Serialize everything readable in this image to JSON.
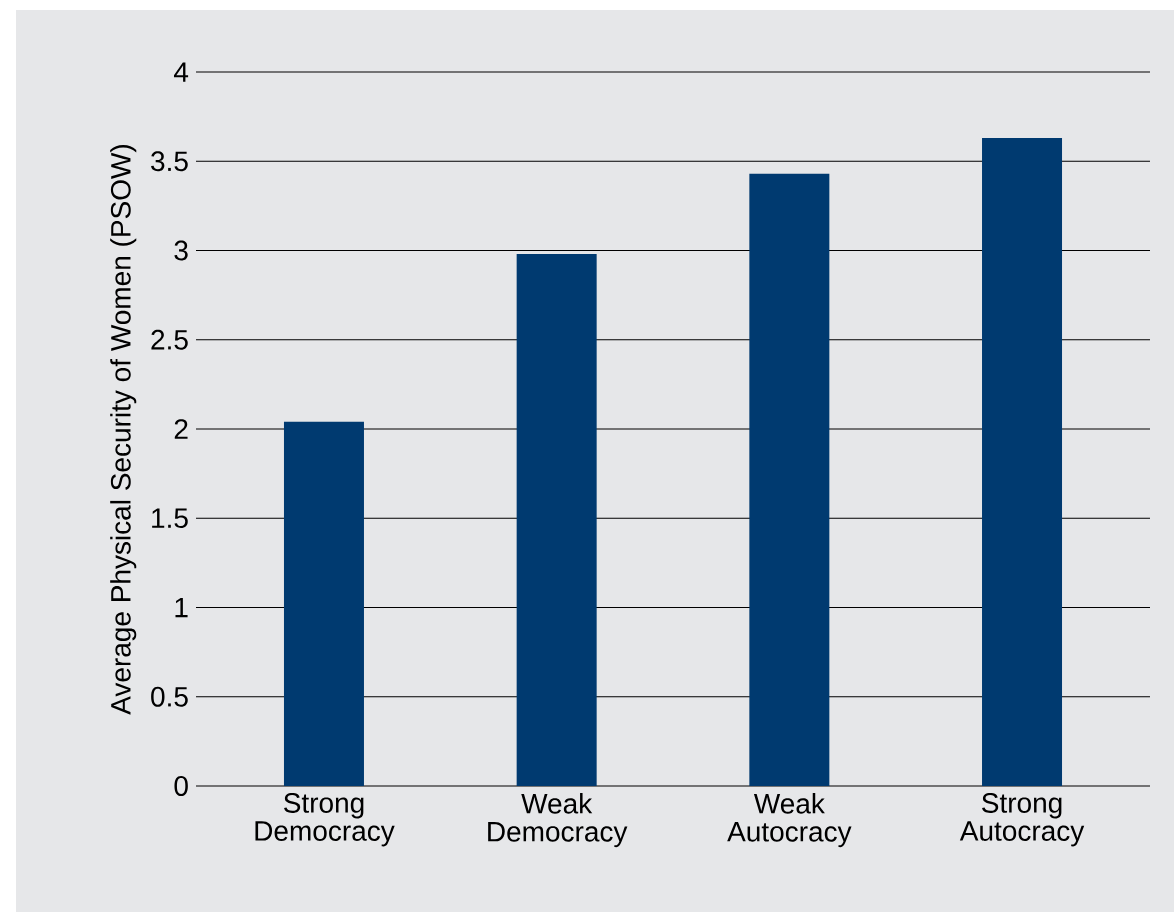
{
  "chart_data": {
    "type": "bar",
    "ylabel": "Average Physical Security of Women (PSOW)",
    "categories": [
      "Strong Democracy",
      "Weak Democracy",
      "Weak Autocracy",
      "Strong Autocracy"
    ],
    "values": [
      2.04,
      2.98,
      3.43,
      3.63
    ],
    "color": "#003a70",
    "ylim": [
      0,
      4
    ],
    "yticks": [
      0,
      0.5,
      1,
      1.5,
      2,
      2.5,
      3,
      3.5,
      4
    ],
    "grid": "y"
  }
}
